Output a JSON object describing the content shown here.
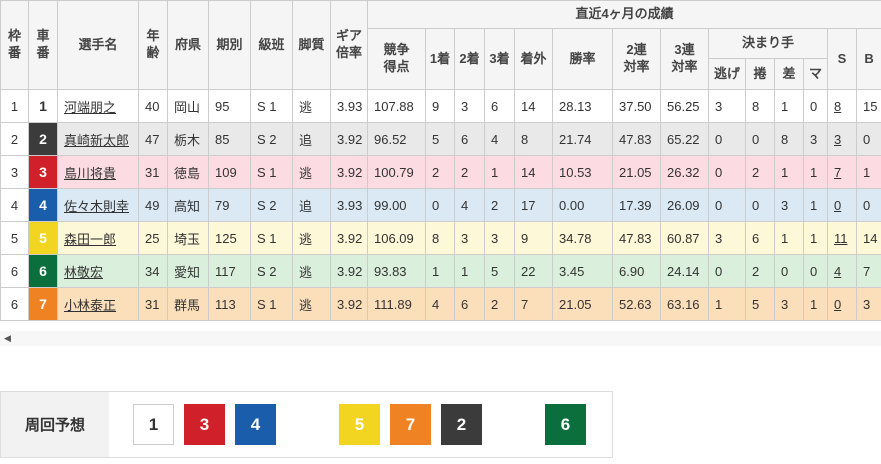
{
  "table": {
    "group_header": "直近4ヶ月の成績",
    "headers": {
      "waku": "枠\n番",
      "car": "車\n番",
      "name": "選手名",
      "age": "年\n齢",
      "pref": "府県",
      "period": "期別",
      "class": "級班",
      "style": "脚質",
      "gear": "ギア\n倍率",
      "score": "競争\n得点",
      "first": "1着",
      "second": "2着",
      "third": "3着",
      "out": "着外",
      "win_rate": "勝率",
      "q2": "2連\n対率",
      "q3": "3連\n対率",
      "kimarite": "決まり手",
      "nige": "逃げ",
      "makuri": "捲",
      "sashi": "差",
      "ma": "マ",
      "s": "S",
      "b": "B"
    },
    "rows": [
      {
        "waku": "1",
        "car": "1",
        "car_bg": "#ffffff",
        "car_fg": "#333333",
        "row_bg": "#ffffff",
        "name": "河端朋之",
        "age": "40",
        "pref": "岡山",
        "period": "95",
        "class": "S 1",
        "style": "逃",
        "gear": "3.93",
        "score": "107.88",
        "first": "9",
        "second": "3",
        "third": "6",
        "out": "14",
        "win_rate": "28.13",
        "q2": "37.50",
        "q3": "56.25",
        "nige": "3",
        "makuri": "8",
        "sashi": "1",
        "ma": "0",
        "s": "8",
        "b": "15"
      },
      {
        "waku": "2",
        "car": "2",
        "car_bg": "#3b3b3b",
        "car_fg": "#ffffff",
        "row_bg": "#e9e9e9",
        "name": "真崎新太郎",
        "age": "47",
        "pref": "栃木",
        "period": "85",
        "class": "S 2",
        "style": "追",
        "gear": "3.92",
        "score": "96.52",
        "first": "5",
        "second": "6",
        "third": "4",
        "out": "8",
        "win_rate": "21.74",
        "q2": "47.83",
        "q3": "65.22",
        "nige": "0",
        "makuri": "0",
        "sashi": "8",
        "ma": "3",
        "s": "3",
        "b": "0"
      },
      {
        "waku": "3",
        "car": "3",
        "car_bg": "#d0202a",
        "car_fg": "#ffffff",
        "row_bg": "#fcdce2",
        "name": "島川将貴",
        "age": "31",
        "pref": "徳島",
        "period": "109",
        "class": "S 1",
        "style": "逃",
        "gear": "3.92",
        "score": "100.79",
        "first": "2",
        "second": "2",
        "third": "1",
        "out": "14",
        "win_rate": "10.53",
        "q2": "21.05",
        "q3": "26.32",
        "nige": "0",
        "makuri": "2",
        "sashi": "1",
        "ma": "1",
        "s": "7",
        "b": "1"
      },
      {
        "waku": "4",
        "car": "4",
        "car_bg": "#1a5dab",
        "car_fg": "#ffffff",
        "row_bg": "#dbe9f4",
        "name": "佐々木則幸",
        "age": "49",
        "pref": "高知",
        "period": "79",
        "class": "S 2",
        "style": "追",
        "gear": "3.93",
        "score": "99.00",
        "first": "0",
        "second": "4",
        "third": "2",
        "out": "17",
        "win_rate": "0.00",
        "q2": "17.39",
        "q3": "26.09",
        "nige": "0",
        "makuri": "0",
        "sashi": "3",
        "ma": "1",
        "s": "0",
        "b": "0"
      },
      {
        "waku": "5",
        "car": "5",
        "car_bg": "#f2d520",
        "car_fg": "#ffffff",
        "row_bg": "#fdf8d7",
        "name": "森田一郎",
        "age": "25",
        "pref": "埼玉",
        "period": "125",
        "class": "S 1",
        "style": "逃",
        "gear": "3.92",
        "score": "106.09",
        "first": "8",
        "second": "3",
        "third": "3",
        "out": "9",
        "win_rate": "34.78",
        "q2": "47.83",
        "q3": "60.87",
        "nige": "3",
        "makuri": "6",
        "sashi": "1",
        "ma": "1",
        "s": "11",
        "b": "14"
      },
      {
        "waku": "6",
        "car": "6",
        "car_bg": "#0b6f3d",
        "car_fg": "#ffffff",
        "row_bg": "#daf0dc",
        "name": "林敬宏",
        "age": "34",
        "pref": "愛知",
        "period": "117",
        "class": "S 2",
        "style": "逃",
        "gear": "3.92",
        "score": "93.83",
        "first": "1",
        "second": "1",
        "third": "5",
        "out": "22",
        "win_rate": "3.45",
        "q2": "6.90",
        "q3": "24.14",
        "nige": "0",
        "makuri": "2",
        "sashi": "0",
        "ma": "0",
        "s": "4",
        "b": "7"
      },
      {
        "waku": "6",
        "car": "7",
        "car_bg": "#ef8222",
        "car_fg": "#ffffff",
        "row_bg": "#fbdfba",
        "name": "小林泰正",
        "age": "31",
        "pref": "群馬",
        "period": "113",
        "class": "S 1",
        "style": "逃",
        "gear": "3.92",
        "score": "111.89",
        "first": "4",
        "second": "6",
        "third": "2",
        "out": "7",
        "win_rate": "21.05",
        "q2": "52.63",
        "q3": "63.16",
        "nige": "1",
        "makuri": "5",
        "sashi": "3",
        "ma": "1",
        "s": "0",
        "b": "3"
      }
    ]
  },
  "scrollbar": {
    "left_arrow": "◀"
  },
  "prediction": {
    "label": "周回予想",
    "groups": [
      [
        {
          "num": "1",
          "bg": "#ffffff",
          "color": "#333333",
          "border": "#cccccc"
        },
        {
          "num": "3",
          "bg": "#d0202a",
          "color": "#ffffff"
        },
        {
          "num": "4",
          "bg": "#1a5dab",
          "color": "#ffffff"
        }
      ],
      [
        {
          "num": "5",
          "bg": "#f2d520",
          "color": "#ffffff"
        },
        {
          "num": "7",
          "bg": "#ef8222",
          "color": "#ffffff"
        },
        {
          "num": "2",
          "bg": "#3b3b3b",
          "color": "#ffffff"
        }
      ],
      [
        {
          "num": "6",
          "bg": "#0b6f3d",
          "color": "#ffffff"
        }
      ]
    ]
  }
}
